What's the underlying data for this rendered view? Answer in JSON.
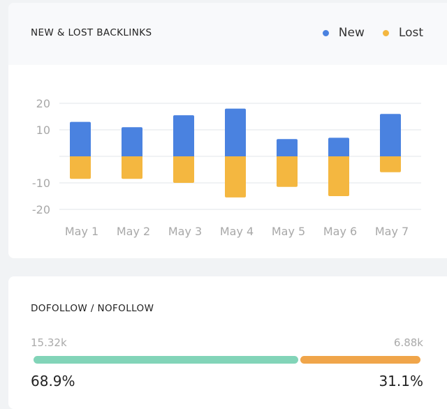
{
  "backlinks_card": {
    "title": "NEW & LOST BACKLINKS"
  },
  "chart_data": {
    "type": "bar",
    "categories": [
      "May 1",
      "May 2",
      "May 3",
      "May 4",
      "May 5",
      "May 6",
      "May 7"
    ],
    "series": [
      {
        "name": "New",
        "color": "#4a82e0",
        "values": [
          13,
          11,
          15.5,
          18,
          6.5,
          7,
          16
        ]
      },
      {
        "name": "Lost",
        "color": "#f4b740",
        "values": [
          -8.5,
          -8.5,
          -10,
          -15.5,
          -11.5,
          -15,
          -6
        ]
      }
    ],
    "yticks": [
      20,
      10,
      -10,
      -20
    ],
    "ylim": [
      -20,
      20
    ],
    "grid": true,
    "stacked": true,
    "legend": "top-right"
  },
  "follow_card": {
    "title": "DOFOLLOW / NOFOLLOW",
    "dofollow": {
      "count": "15.32k",
      "percent": "68.9%",
      "fraction": 0.689,
      "color": "#82d4b8"
    },
    "nofollow": {
      "count": "6.88k",
      "percent": "31.1%",
      "fraction": 0.311,
      "color": "#f0a54a"
    }
  }
}
